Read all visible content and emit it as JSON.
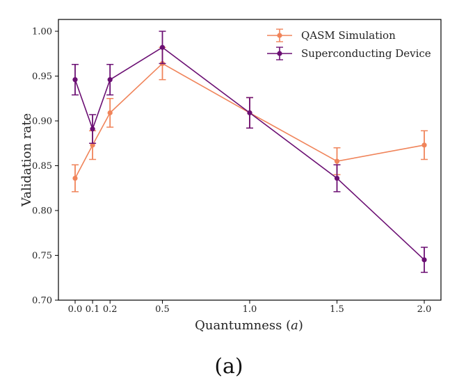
{
  "chart_data": {
    "type": "line",
    "title": "",
    "caption": "(a)",
    "xlabel": "Quantumness (a)",
    "xlabel_main": "Quantumness (",
    "xlabel_var": "a",
    "xlabel_close": ")",
    "ylabel": "Validation rate",
    "xlim": [
      -0.1,
      2.1
    ],
    "ylim": [
      0.7,
      1.01
    ],
    "x_ticks": [
      0.0,
      0.1,
      0.2,
      0.5,
      1.0,
      1.5,
      2.0
    ],
    "x_tick_labels": [
      "0.0",
      "0.1",
      "0.2",
      "0.5",
      "1.0",
      "1.5",
      "2.0"
    ],
    "y_ticks": [
      0.7,
      0.75,
      0.8,
      0.85,
      0.9,
      0.95,
      1.0
    ],
    "y_tick_labels": [
      "0.70",
      "0.75",
      "0.80",
      "0.85",
      "0.90",
      "0.95",
      "1.00"
    ],
    "grid": false,
    "legend_position": "top-right",
    "x": [
      0.0,
      0.1,
      0.2,
      0.5,
      1.0,
      1.5,
      2.0
    ],
    "series": [
      {
        "name": "QASM Simulation",
        "color": "#f0845a",
        "values": [
          0.836,
          0.873,
          0.909,
          0.964,
          0.909,
          0.855,
          0.873
        ],
        "errors": [
          0.015,
          0.016,
          0.016,
          0.018,
          0.017,
          0.015,
          0.016
        ]
      },
      {
        "name": "Superconducting Device",
        "color": "#6b0f73",
        "values": [
          0.946,
          0.891,
          0.946,
          0.982,
          0.909,
          0.836,
          0.745
        ],
        "errors": [
          0.017,
          0.016,
          0.017,
          0.018,
          0.017,
          0.015,
          0.014
        ]
      }
    ]
  }
}
